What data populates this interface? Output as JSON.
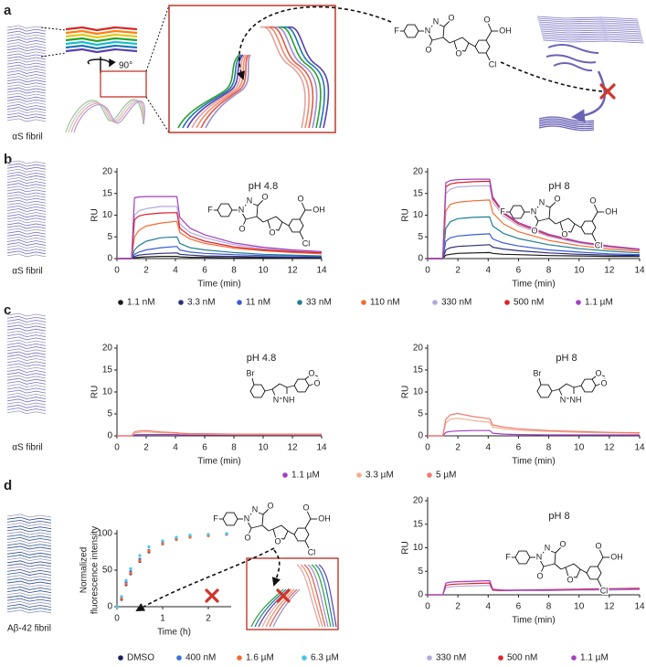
{
  "panels": [
    {
      "letter": "a",
      "caption": "αS fibril",
      "rotation": "90°",
      "structure": [
        "F",
        "N",
        "N",
        "O",
        "O",
        "O",
        "O",
        "OH",
        "Cl"
      ]
    },
    {
      "letter": "b",
      "caption": "αS fibril"
    },
    {
      "letter": "c",
      "caption": "αS fibril"
    },
    {
      "letter": "d",
      "caption": "Aβ-42 fibril"
    }
  ],
  "chart_data": [
    {
      "type": "line",
      "annotation": "pH 4.8",
      "annotation_color": "#e0574a",
      "xlabel": "Time (min)",
      "ylabel": "RU",
      "xlim": [
        0,
        14
      ],
      "xticks": [
        0,
        2,
        4,
        6,
        8,
        10,
        12,
        14
      ],
      "ylim": [
        0,
        20
      ],
      "yticks": [
        0,
        5,
        10,
        15,
        20
      ],
      "structure": [
        "F",
        "N",
        "N",
        "O",
        "O",
        "O",
        "O",
        "OH",
        "Cl"
      ],
      "x": [
        0,
        1,
        1.2,
        1.5,
        2,
        3,
        4.1,
        4.3,
        5,
        6,
        8,
        10,
        12,
        14
      ],
      "series": [
        {
          "name": "1.1 nM",
          "color": "#1a1a1a",
          "values": [
            0,
            0,
            0.2,
            0.3,
            0.4,
            0.5,
            0.5,
            0.4,
            0.3,
            0.3,
            0.2,
            0.2,
            0.2,
            0.2
          ]
        },
        {
          "name": "3.3 nM",
          "color": "#2e2f7a",
          "values": [
            0,
            0,
            0.5,
            0.8,
            1,
            1.2,
            1.3,
            1,
            0.8,
            0.6,
            0.5,
            0.4,
            0.3,
            0.3
          ]
        },
        {
          "name": "11 nM",
          "color": "#3b5bdb",
          "values": [
            0,
            0,
            1,
            1.5,
            2,
            2.5,
            2.8,
            2,
            1.5,
            1.2,
            0.9,
            0.7,
            0.6,
            0.5
          ]
        },
        {
          "name": "33 nM",
          "color": "#1f7f8f",
          "values": [
            0,
            0,
            2,
            3,
            4,
            4.8,
            5,
            3.5,
            2.5,
            2,
            1.4,
            1,
            0.8,
            0.6
          ]
        },
        {
          "name": "110 nM",
          "color": "#f26b2f",
          "values": [
            0,
            0,
            5,
            6.5,
            7.5,
            8.2,
            8.6,
            6,
            4.5,
            3.5,
            2.4,
            1.8,
            1.4,
            1.1
          ]
        },
        {
          "name": "330 nM",
          "color": "#b3a9dc",
          "values": [
            0,
            0,
            10,
            11,
            11.5,
            12,
            12,
            8,
            6,
            4.8,
            3.2,
            2.3,
            1.8,
            1.4
          ]
        },
        {
          "name": "500 nM",
          "color": "#e0202a",
          "values": [
            0,
            0,
            9,
            9.8,
            10.2,
            10.5,
            10.6,
            7,
            5.2,
            4,
            2.7,
            2,
            1.6,
            1.3
          ]
        },
        {
          "name": "1.1 µM",
          "color": "#a33fc2",
          "values": [
            0,
            0,
            14,
            14.2,
            14.3,
            14.3,
            14.3,
            9.5,
            7,
            5.5,
            3.6,
            2.6,
            2,
            1.6
          ]
        }
      ]
    },
    {
      "type": "line",
      "annotation": "pH 8",
      "annotation_color": "#3b8fd0",
      "xlabel": "Time (min)",
      "ylabel": "RU",
      "xlim": [
        0,
        14
      ],
      "xticks": [
        0,
        2,
        4,
        6,
        8,
        10,
        12,
        14
      ],
      "ylim": [
        0,
        20
      ],
      "yticks": [
        0,
        5,
        10,
        15,
        20
      ],
      "structure": [
        "F",
        "N",
        "N",
        "O",
        "O",
        "O",
        "O",
        "OH",
        "Cl"
      ],
      "x": [
        0,
        1,
        1.2,
        1.5,
        2,
        3,
        4.1,
        4.3,
        5,
        6,
        8,
        10,
        12,
        14
      ],
      "series": [
        {
          "color": "#1a1a1a",
          "values": [
            0,
            0,
            0.8,
            1,
            1.2,
            1.3,
            1.4,
            1.2,
            1,
            0.9,
            0.7,
            0.6,
            0.5,
            0.5
          ]
        },
        {
          "color": "#2e2f7a",
          "values": [
            0,
            0,
            2,
            2.5,
            2.8,
            3,
            3.2,
            2.6,
            2.2,
            1.8,
            1.3,
            1,
            0.8,
            0.7
          ]
        },
        {
          "color": "#3b5bdb",
          "values": [
            0,
            0,
            4,
            4.8,
            5.2,
            5.5,
            5.7,
            4.5,
            3.6,
            2.9,
            2,
            1.5,
            1.1,
            0.9
          ]
        },
        {
          "color": "#1f7f8f",
          "values": [
            0,
            0,
            7,
            8.5,
            9.2,
            9.5,
            9.6,
            7.5,
            5.8,
            4.6,
            3.2,
            2.3,
            1.7,
            1.3
          ]
        },
        {
          "color": "#f26b2f",
          "values": [
            0,
            0,
            11,
            12.5,
            13,
            13.3,
            13.5,
            10.5,
            8,
            6.2,
            4.2,
            3,
            2.2,
            1.7
          ]
        },
        {
          "color": "#b3a9dc",
          "values": [
            0,
            0,
            15,
            16,
            16.5,
            16.7,
            16.8,
            13,
            9.8,
            7.6,
            5.1,
            3.6,
            2.6,
            2
          ]
        },
        {
          "color": "#e0202a",
          "values": [
            0,
            0,
            16.5,
            17.2,
            17.5,
            17.7,
            17.8,
            13.8,
            10.4,
            8,
            5.4,
            3.8,
            2.8,
            2.1
          ]
        },
        {
          "color": "#a33fc2",
          "values": [
            0,
            0,
            17.5,
            18,
            18.2,
            18.3,
            18.3,
            14.2,
            10.7,
            8.3,
            5.6,
            3.9,
            2.9,
            2.2
          ]
        }
      ]
    },
    {
      "type": "line",
      "annotation": "pH 4.8",
      "annotation_color": "#e0574a",
      "xlabel": "Time (min)",
      "ylabel": "RU",
      "xlim": [
        0,
        14
      ],
      "xticks": [
        0,
        2,
        4,
        6,
        8,
        10,
        12,
        14
      ],
      "ylim": [
        0,
        20
      ],
      "yticks": [
        0,
        5,
        10,
        15,
        20
      ],
      "structure": [
        "Br",
        "N",
        "NH",
        "O",
        "O"
      ],
      "x": [
        0,
        1,
        1.2,
        1.5,
        2,
        3,
        4.1,
        4.3,
        5,
        6,
        8,
        10,
        12,
        14
      ],
      "series": [
        {
          "name": "1.1 µM",
          "color": "#a33fc2",
          "values": [
            0,
            0,
            0.2,
            0.3,
            0.3,
            0.3,
            0.3,
            0.2,
            0.2,
            0.2,
            0.2,
            0.2,
            0.2,
            0.2
          ]
        },
        {
          "name": "3.3 µM",
          "color": "#f6ac8c",
          "values": [
            0,
            0,
            0.6,
            0.8,
            0.9,
            0.7,
            0.6,
            0.5,
            0.4,
            0.4,
            0.3,
            0.3,
            0.3,
            0.3
          ]
        },
        {
          "name": "5 µM",
          "color": "#f07a70",
          "values": [
            0,
            0,
            0.9,
            1.1,
            1.2,
            0.9,
            0.7,
            0.6,
            0.5,
            0.5,
            0.4,
            0.4,
            0.4,
            0.4
          ]
        }
      ]
    },
    {
      "type": "line",
      "annotation": "pH 8",
      "annotation_color": "#3b8fd0",
      "xlabel": "Time (min)",
      "ylabel": "RU",
      "xlim": [
        0,
        14
      ],
      "xticks": [
        0,
        2,
        4,
        6,
        8,
        10,
        12,
        14
      ],
      "ylim": [
        0,
        20
      ],
      "yticks": [
        0,
        5,
        10,
        15,
        20
      ],
      "structure": [
        "Br",
        "N",
        "NH",
        "O",
        "O"
      ],
      "x": [
        0,
        1,
        1.2,
        1.5,
        2,
        3,
        4.1,
        4.3,
        5,
        6,
        8,
        10,
        12,
        14
      ],
      "series": [
        {
          "color": "#a33fc2",
          "values": [
            0,
            0,
            0.8,
            1,
            1.1,
            1.2,
            1.2,
            0.6,
            0.4,
            0.3,
            0.2,
            0.2,
            0.2,
            0.2
          ]
        },
        {
          "color": "#f6ac8c",
          "values": [
            0,
            0,
            3,
            3.8,
            4,
            3.5,
            3.1,
            2,
            1.6,
            1.3,
            1,
            0.8,
            0.7,
            0.6
          ]
        },
        {
          "color": "#f07a70",
          "values": [
            0,
            0,
            3.8,
            4.8,
            5.1,
            4.4,
            3.9,
            2.5,
            2,
            1.6,
            1.2,
            1,
            0.8,
            0.7
          ]
        }
      ]
    },
    {
      "type": "scatter",
      "xlabel": "Time (h)",
      "ylabel": [
        "Normalized",
        "fluorescence intensity"
      ],
      "xlim": [
        0,
        2.5
      ],
      "xticks": [
        0,
        1,
        2
      ],
      "ylim": [
        0,
        100
      ],
      "yticks": [
        0,
        50,
        100
      ],
      "structure": [
        "F",
        "N",
        "N",
        "O",
        "O",
        "O",
        "O",
        "OH",
        "Cl"
      ],
      "x": [
        0,
        0.1,
        0.2,
        0.3,
        0.5,
        0.7,
        1,
        1.3,
        1.6,
        2,
        2.4
      ],
      "series": [
        {
          "name": "DMSO",
          "color": "#1d1d5c",
          "values": [
            0,
            10,
            30,
            45,
            62,
            75,
            86,
            92,
            96,
            98,
            99
          ]
        },
        {
          "name": "400 nM",
          "color": "#3b6fe0",
          "values": [
            0,
            12,
            33,
            48,
            65,
            77,
            87,
            93,
            96,
            98,
            99
          ]
        },
        {
          "name": "1.6 µM",
          "color": "#f26b2f",
          "values": [
            0,
            11,
            31,
            46,
            63,
            76,
            86,
            92,
            95,
            97,
            99
          ]
        },
        {
          "name": "6.3 µM",
          "color": "#45c8e6",
          "values": [
            0,
            14,
            36,
            52,
            70,
            82,
            90,
            95,
            98,
            99,
            100
          ]
        }
      ]
    },
    {
      "type": "line",
      "annotation": "pH 8",
      "annotation_color": "#3b8fd0",
      "xlabel": "Time (min)",
      "ylabel": "RU",
      "xlim": [
        0,
        14
      ],
      "xticks": [
        0,
        2,
        4,
        6,
        8,
        10,
        12,
        14
      ],
      "ylim": [
        0,
        20
      ],
      "yticks": [
        0,
        5,
        10,
        15,
        20
      ],
      "structure": [
        "F",
        "N",
        "N",
        "O",
        "O",
        "O",
        "O",
        "OH",
        "Cl"
      ],
      "x": [
        0,
        1,
        1.2,
        1.5,
        2,
        3,
        4.1,
        4.3,
        5,
        6,
        8,
        10,
        12,
        14
      ],
      "series": [
        {
          "name": "330 nM",
          "color": "#b3a9dc",
          "values": [
            0,
            0,
            1.5,
            1.7,
            1.8,
            1.9,
            2,
            1,
            0.9,
            0.9,
            0.9,
            1,
            1,
            1.1
          ]
        },
        {
          "name": "500 nM",
          "color": "#e0202a",
          "values": [
            0,
            0,
            2,
            2.2,
            2.3,
            2.4,
            2.5,
            1,
            0.9,
            1,
            1.1,
            1.2,
            1.3,
            1.4
          ]
        },
        {
          "name": "1.1 µM",
          "color": "#a33fc2",
          "values": [
            0,
            0,
            2.5,
            2.7,
            2.8,
            2.9,
            3,
            1.2,
            1,
            1,
            1,
            1.1,
            1.2,
            1.2
          ]
        }
      ]
    }
  ]
}
